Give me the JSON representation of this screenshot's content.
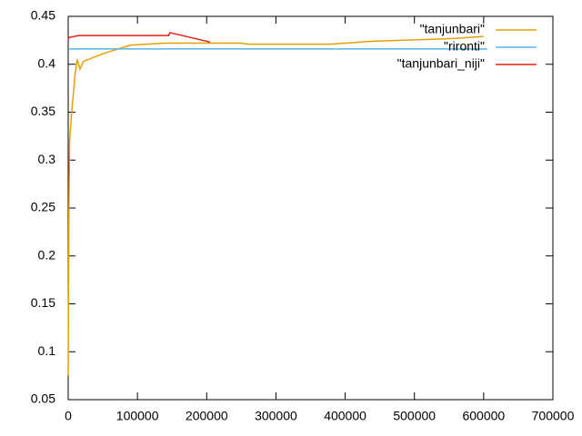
{
  "chart_data": {
    "type": "line",
    "xlim": [
      0,
      700000
    ],
    "xticks": [
      0,
      100000,
      200000,
      300000,
      400000,
      500000,
      600000,
      700000
    ],
    "ylim": [
      0.05,
      0.45
    ],
    "yticks": [
      0.05,
      0.1,
      0.15,
      0.2,
      0.25,
      0.3,
      0.35,
      0.4,
      0.45
    ],
    "legend": "top-right",
    "series": [
      {
        "name": "\"tanjunbari\"",
        "color": "#e69f00",
        "x": [
          0,
          1000,
          2000,
          5000,
          10000,
          13000,
          17000,
          22000,
          50000,
          90000,
          140000,
          250000,
          260000,
          380000,
          400000,
          440000,
          480000,
          520000,
          560000,
          600000
        ],
        "values": [
          0.075,
          0.24,
          0.32,
          0.35,
          0.39,
          0.405,
          0.395,
          0.403,
          0.411,
          0.42,
          0.422,
          0.422,
          0.421,
          0.421,
          0.422,
          0.424,
          0.425,
          0.426,
          0.427,
          0.429
        ]
      },
      {
        "name": "\"rironti\"",
        "color": "#56b4e9",
        "x": [
          0,
          605000
        ],
        "values": [
          0.416,
          0.416
        ]
      },
      {
        "name": "\"tanjunbari_niji\"",
        "color": "#e51e10",
        "x": [
          0,
          1000,
          15000,
          145000,
          147000,
          200000,
          205000
        ],
        "values": [
          0.425,
          0.428,
          0.43,
          0.43,
          0.433,
          0.424,
          0.423
        ]
      }
    ]
  }
}
